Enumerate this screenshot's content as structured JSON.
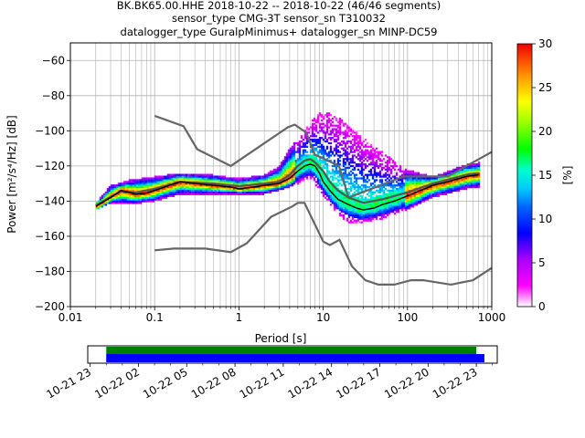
{
  "title_lines": [
    "BK.BK65.00.HHE   2018-10-22 -- 2018-10-22  (46/46 segments)",
    "sensor_type CMG-3T sensor_sn T310032",
    "datalogger_type GuralpMinimus+ datalogger_sn MINP-DC59"
  ],
  "chart_data": {
    "type": "heatmap",
    "xlabel": "Period [s]",
    "ylabel": "Power [m²/s⁴/Hz] [dB]",
    "xscale": "log",
    "xlim": [
      0.01,
      1000
    ],
    "ylim": [
      -200,
      -50
    ],
    "x_ticks": [
      {
        "value": 0.01,
        "label": "0.01"
      },
      {
        "value": 0.1,
        "label": "0.1"
      },
      {
        "value": 1,
        "label": "1"
      },
      {
        "value": 10,
        "label": "10"
      },
      {
        "value": 100,
        "label": "100"
      },
      {
        "value": 1000,
        "label": "1000"
      }
    ],
    "y_ticks": [
      {
        "value": -60,
        "label": "−60"
      },
      {
        "value": -80,
        "label": "−80"
      },
      {
        "value": -100,
        "label": "−100"
      },
      {
        "value": -120,
        "label": "−120"
      },
      {
        "value": -140,
        "label": "−140"
      },
      {
        "value": -160,
        "label": "−160"
      },
      {
        "value": -180,
        "label": "−180"
      },
      {
        "value": -200,
        "label": "−200"
      }
    ],
    "grid": true,
    "colorbar": {
      "label": "[%]",
      "range": [
        0,
        30
      ],
      "ticks": [
        {
          "value": 0,
          "label": "0"
        },
        {
          "value": 5,
          "label": "5"
        },
        {
          "value": 10,
          "label": "10"
        },
        {
          "value": 15,
          "label": "15"
        },
        {
          "value": 20,
          "label": "20"
        },
        {
          "value": 25,
          "label": "25"
        },
        {
          "value": 30,
          "label": "30"
        }
      ]
    },
    "nlnm": [
      [
        0.1,
        -168
      ],
      [
        0.17,
        -167
      ],
      [
        0.4,
        -167
      ],
      [
        0.8,
        -169
      ],
      [
        1.24,
        -164
      ],
      [
        2.4,
        -149
      ],
      [
        4.3,
        -143
      ],
      [
        5.0,
        -141
      ],
      [
        6.0,
        -141
      ],
      [
        10,
        -163
      ],
      [
        12,
        -165
      ],
      [
        15.6,
        -162
      ],
      [
        21.9,
        -177
      ],
      [
        31.6,
        -185
      ],
      [
        45,
        -187.5
      ],
      [
        70,
        -187.5
      ],
      [
        110,
        -185
      ],
      [
        154,
        -185
      ],
      [
        328,
        -187.5
      ],
      [
        600,
        -185
      ],
      [
        1000,
        -178
      ]
    ],
    "nhnm": [
      [
        0.1,
        -91.5
      ],
      [
        0.22,
        -97.4
      ],
      [
        0.32,
        -110.5
      ],
      [
        0.8,
        -120
      ],
      [
        3.8,
        -98
      ],
      [
        4.6,
        -96.5
      ],
      [
        6.3,
        -101
      ],
      [
        7.9,
        -113.5
      ],
      [
        15.4,
        -120
      ],
      [
        20,
        -138
      ],
      [
        90,
        -126
      ],
      [
        300,
        -126
      ],
      [
        1000,
        -112
      ]
    ],
    "mode_curve": [
      [
        0.02,
        -143
      ],
      [
        0.03,
        -138
      ],
      [
        0.04,
        -134
      ],
      [
        0.05,
        -135
      ],
      [
        0.06,
        -136
      ],
      [
        0.08,
        -135.5
      ],
      [
        0.1,
        -134
      ],
      [
        0.15,
        -131
      ],
      [
        0.2,
        -129
      ],
      [
        0.3,
        -130
      ],
      [
        0.5,
        -131
      ],
      [
        0.8,
        -132
      ],
      [
        1.0,
        -133
      ],
      [
        1.5,
        -132
      ],
      [
        2.0,
        -131
      ],
      [
        3.0,
        -130
      ],
      [
        4.0,
        -127
      ],
      [
        5.0,
        -123
      ],
      [
        6.0,
        -120
      ],
      [
        7.0,
        -119
      ],
      [
        8.0,
        -120
      ],
      [
        9.0,
        -124
      ],
      [
        10,
        -129
      ],
      [
        12,
        -134
      ],
      [
        15,
        -139
      ],
      [
        20,
        -142
      ],
      [
        25,
        -144
      ],
      [
        30,
        -145
      ],
      [
        40,
        -144
      ],
      [
        50,
        -142
      ],
      [
        70,
        -140
      ],
      [
        100,
        -137
      ],
      [
        200,
        -131
      ],
      [
        300,
        -129
      ],
      [
        500,
        -126
      ],
      [
        700,
        -125
      ]
    ],
    "mean_curve": [
      [
        0.02,
        -142.5
      ],
      [
        0.03,
        -137.5
      ],
      [
        0.04,
        -134.5
      ],
      [
        0.06,
        -135
      ],
      [
        0.1,
        -133
      ],
      [
        0.2,
        -129
      ],
      [
        0.5,
        -130
      ],
      [
        1.0,
        -131.5
      ],
      [
        2.0,
        -130
      ],
      [
        3.0,
        -129
      ],
      [
        4.0,
        -125
      ],
      [
        5.0,
        -120
      ],
      [
        6.0,
        -117
      ],
      [
        7.0,
        -116
      ],
      [
        8.0,
        -118
      ],
      [
        10,
        -123
      ],
      [
        12,
        -129
      ],
      [
        15,
        -134
      ],
      [
        20,
        -138
      ],
      [
        30,
        -141
      ],
      [
        50,
        -139
      ],
      [
        100,
        -135
      ],
      [
        200,
        -130
      ],
      [
        500,
        -125
      ],
      [
        700,
        -124
      ]
    ],
    "spread": [
      [
        0.02,
        -141,
        -145
      ],
      [
        0.03,
        -131,
        -141
      ],
      [
        0.05,
        -128,
        -142
      ],
      [
        0.1,
        -126,
        -140
      ],
      [
        0.2,
        -124,
        -136
      ],
      [
        0.5,
        -125,
        -136
      ],
      [
        1.0,
        -127,
        -136
      ],
      [
        2.0,
        -125,
        -136
      ],
      [
        3.0,
        -120,
        -134
      ],
      [
        4.0,
        -110,
        -132
      ],
      [
        5.0,
        -104,
        -130
      ],
      [
        7.0,
        -95,
        -127
      ],
      [
        10,
        -88,
        -137
      ],
      [
        15,
        -92,
        -148
      ],
      [
        20,
        -97,
        -152
      ],
      [
        30,
        -104,
        -152
      ],
      [
        50,
        -112,
        -150
      ],
      [
        100,
        -122,
        -145
      ],
      [
        200,
        -126,
        -138
      ],
      [
        500,
        -119,
        -133
      ],
      [
        700,
        -118,
        -132
      ]
    ],
    "time_axis": {
      "tick_labels": [
        "10-21 23",
        "10-22 02",
        "10-22 05",
        "10-22 08",
        "10-22 11",
        "10-22 14",
        "10-22 17",
        "10-22 20",
        "10-22 23"
      ],
      "tick_hours": [
        23,
        26,
        29,
        32,
        35,
        38,
        41,
        44,
        47
      ],
      "range_hours": [
        22.85,
        48.3
      ],
      "coverage_hours": [
        24.0,
        47.0
      ],
      "data_bar_hours": [
        24.0,
        47.5
      ],
      "coverage_color": "#008000",
      "data_color": "#0000ff"
    }
  }
}
